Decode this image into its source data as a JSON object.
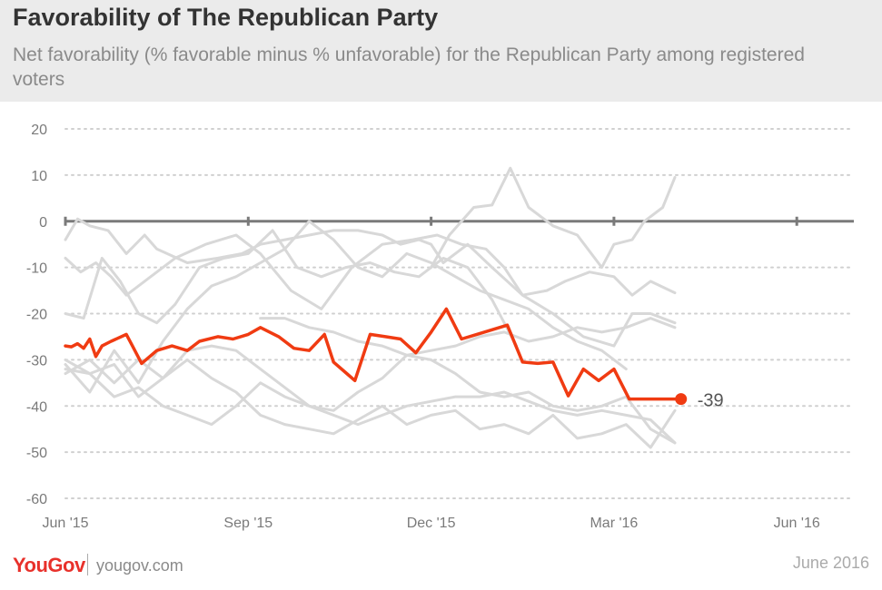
{
  "title": "Favorability of The Republican Party",
  "subtitle": "Net favorability (% favorable minus % unfavorable) for the Republican Party among registered voters",
  "footer": {
    "logo": "YouGov",
    "url": "yougov.com",
    "date": "June 2016"
  },
  "colors": {
    "highlight": "#f03b12",
    "background_lines": "#d8d8d8",
    "axis": "#7a7a7a",
    "grid": "#d0d0d0"
  },
  "chart_data": {
    "type": "line",
    "x_ticks": [
      "Jun '15",
      "Sep '15",
      "Dec '15",
      "Mar '16",
      "Jun '16"
    ],
    "ylim": [
      -60,
      20
    ],
    "y_ticks": [
      20,
      10,
      0,
      -10,
      -20,
      -30,
      -40,
      -50,
      -60
    ],
    "grid": true,
    "end_label": "-39",
    "highlight": {
      "x": [
        0,
        0.1,
        0.2,
        0.3,
        0.4,
        0.5,
        0.6,
        0.75,
        1.0,
        1.1,
        1.25,
        1.5,
        1.75,
        2.0,
        2.2,
        2.5,
        2.75,
        3.0,
        3.2,
        3.5,
        3.75,
        4.0,
        4.25,
        4.4,
        4.75,
        5.0,
        5.25,
        5.5,
        5.75,
        6.0,
        6.25,
        6.5,
        6.75,
        7.0,
        7.25,
        7.5,
        7.75,
        8.0,
        8.25,
        8.5,
        8.75,
        9.0,
        9.25,
        9.5,
        9.75,
        10.0,
        10.1
      ],
      "values": [
        -27,
        -27.2,
        -26.5,
        -27.5,
        -25.5,
        -29.3,
        -27,
        -26,
        -24.5,
        -27,
        -30.8,
        -28,
        -27,
        -28,
        -26,
        -25,
        -25.5,
        -24.5,
        -23,
        -25,
        -27.5,
        -28,
        -24.5,
        -30.5,
        -34.5,
        -24.5,
        -25,
        -25.5,
        -28.5,
        -24,
        -19,
        -25.5,
        -24.5,
        -23.5,
        -22.5,
        -30.5,
        -30.8,
        -30.5,
        -37.8,
        -32,
        -34.5,
        -32,
        -38.5,
        -38.5,
        -38.5,
        -38.5,
        -38.5
      ]
    },
    "other_series": [
      {
        "x": [
          0,
          0.2,
          0.4,
          0.7,
          1.0,
          1.3,
          1.5,
          2.0,
          2.5,
          2.9,
          3.2,
          3.6,
          4.0,
          4.4,
          4.8,
          5.2,
          5.5,
          5.8,
          6.0,
          6.2,
          6.6,
          7.0,
          7.5,
          7.9,
          8.2,
          8.6,
          9.0,
          9.3,
          9.6,
          10.0
        ],
        "values": [
          -4,
          0.5,
          -1,
          -2,
          -7,
          -3,
          -6,
          -9,
          -8,
          -7,
          -5,
          -4,
          -3,
          -2,
          -2,
          -3,
          -5,
          -4,
          -5,
          -9,
          -5,
          -10,
          -16,
          -15,
          -13,
          -11,
          -12,
          -16,
          -13,
          -15.5
        ]
      },
      {
        "x": [
          0,
          0.25,
          0.5,
          0.75,
          1.0,
          1.4,
          1.8,
          2.3,
          2.8,
          3.2,
          3.7,
          4.2,
          4.7,
          5.2,
          5.7,
          6.1,
          6.5,
          6.9,
          7.2,
          7.5,
          8.0,
          8.5,
          9.0,
          9.3,
          9.6,
          10.0
        ],
        "values": [
          -8,
          -11,
          -9,
          -12,
          -16,
          -12,
          -8,
          -5,
          -3,
          -7,
          -15,
          -19,
          -10,
          -5,
          -4,
          -3,
          -5,
          -6,
          -10,
          -16,
          -20,
          -25,
          -27,
          -20,
          -20,
          -22
        ]
      },
      {
        "x": [
          6.0,
          6.3,
          6.7,
          7.0,
          7.3,
          7.6,
          8.0,
          8.4,
          8.8,
          9.0,
          9.3,
          9.5,
          9.8,
          10.0
        ],
        "values": [
          -10,
          -3,
          3,
          3.5,
          11.5,
          3,
          -1,
          -3,
          -10,
          -5,
          -4,
          0,
          3,
          9.5
        ]
      },
      {
        "x": [
          0,
          0.3,
          0.6,
          0.9,
          1.2,
          1.5,
          1.8,
          2.2,
          2.6,
          3.0,
          3.4,
          3.8,
          4.2,
          4.6,
          5.0,
          5.4,
          5.8,
          6.2,
          6.6,
          7.0,
          7.4
        ],
        "values": [
          -20,
          -21,
          -8,
          -13,
          -20,
          -22,
          -18,
          -10,
          -8,
          -7,
          -2,
          -10,
          -12,
          -10,
          -9,
          -11,
          -12,
          -8,
          -10,
          -17,
          -27
        ]
      },
      {
        "x": [
          0,
          0.4,
          0.8,
          1.2,
          1.6,
          2.0,
          2.4,
          2.8,
          3.2,
          3.6,
          4.0,
          4.4,
          4.8,
          5.2,
          5.6,
          6.0,
          6.4,
          6.8,
          7.2,
          7.6,
          8.0,
          8.4,
          8.8,
          9.2
        ],
        "values": [
          -31,
          -37,
          -28,
          -35,
          -26,
          -19,
          -14,
          -12,
          -9,
          -6,
          0,
          -4,
          -10,
          -12,
          -7,
          -9,
          -12,
          -15,
          -17,
          -19,
          -23,
          -26,
          -28,
          -32
        ]
      },
      {
        "x": [
          0,
          0.4,
          0.8,
          1.2,
          1.6,
          2.0,
          2.4,
          2.8,
          3.2,
          3.6,
          4.0,
          4.4,
          4.8,
          5.2,
          5.6,
          6.0,
          6.4,
          6.8,
          7.2,
          7.6,
          8.0,
          8.4,
          8.8,
          9.2,
          9.6,
          10.0
        ],
        "values": [
          -33,
          -30,
          -35,
          -30,
          -34,
          -28,
          -27,
          -28,
          -32,
          -36,
          -40,
          -41,
          -37,
          -34,
          -29,
          -30,
          -33,
          -37,
          -38,
          -37,
          -40,
          -41,
          -40,
          -38,
          -45,
          -48
        ]
      },
      {
        "x": [
          0,
          0.4,
          0.8,
          1.2,
          1.6,
          2.0,
          2.4,
          2.8,
          3.2,
          3.6,
          4.0,
          4.4,
          4.8,
          5.2,
          5.6,
          6.0,
          6.4,
          6.8,
          7.2,
          7.6,
          8.0,
          8.4,
          8.8,
          9.2,
          9.6,
          10.0
        ],
        "values": [
          -32,
          -33,
          -38,
          -36,
          -40,
          -42,
          -44,
          -40,
          -35,
          -38,
          -40,
          -42,
          -44,
          -42,
          -40,
          -39,
          -38,
          -38,
          -37,
          -39,
          -41,
          -42,
          -41,
          -42,
          -43,
          -48
        ]
      },
      {
        "x": [
          0,
          0.4,
          0.8,
          1.2,
          1.6,
          2.0,
          2.4,
          2.8,
          3.2,
          3.6,
          4.0,
          4.4,
          4.8,
          5.2,
          5.6,
          6.0,
          6.4,
          6.8,
          7.2,
          7.6,
          8.0,
          8.4,
          8.8,
          9.2,
          9.6,
          10.0
        ],
        "values": [
          -30,
          -33,
          -31,
          -38,
          -34,
          -30,
          -34,
          -37,
          -42,
          -44,
          -45,
          -46,
          -43,
          -40,
          -44,
          -42,
          -41,
          -45,
          -44,
          -46,
          -42,
          -47,
          -46,
          -44,
          -49,
          -41
        ]
      },
      {
        "x": [
          3.2,
          3.6,
          4.0,
          4.4,
          4.8,
          5.2,
          5.6,
          6.0,
          6.4,
          6.8,
          7.2,
          7.6,
          8.0,
          8.4,
          8.8,
          9.2,
          9.6,
          10.0
        ],
        "values": [
          -21,
          -21,
          -23,
          -24,
          -26,
          -27,
          -29,
          -28,
          -27,
          -25,
          -24,
          -26,
          -25,
          -23,
          -24,
          -23,
          -21,
          -23
        ]
      }
    ]
  }
}
